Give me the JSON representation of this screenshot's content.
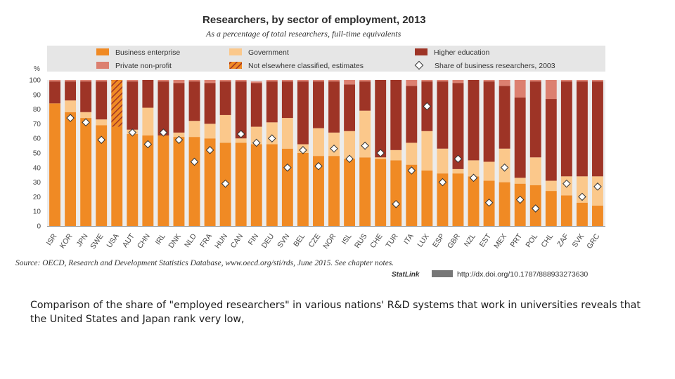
{
  "chart_data": {
    "type": "bar",
    "title": "Researchers, by sector of employment, 2013",
    "subtitle": "As a percentage of total researchers, full-time equivalents",
    "ylabel": "%",
    "ylim": [
      0,
      100
    ],
    "yticks": [
      "0",
      "10",
      "20",
      "30",
      "40",
      "50",
      "60",
      "70",
      "80",
      "90",
      "100"
    ],
    "stacked": true,
    "legend_position": "top",
    "categories": [
      "ISR",
      "KOR",
      "JPN",
      "SWE",
      "USA",
      "AUT",
      "CHN",
      "IRL",
      "DNK",
      "NLD",
      "FRA",
      "HUN",
      "CAN",
      "FIN",
      "DEU",
      "SVN",
      "BEL",
      "CZE",
      "NOR",
      "ISL",
      "RUS",
      "CHE",
      "TUR",
      "ITA",
      "LUX",
      "ESP",
      "GBR",
      "NZL",
      "EST",
      "MEX",
      "PRT",
      "POL",
      "CHL",
      "ZAF",
      "SVK",
      "GRC"
    ],
    "series": [
      {
        "name": "Business enterprise",
        "color": "#f08a24",
        "values": [
          84,
          78,
          74,
          69,
          68,
          63,
          62,
          62,
          61,
          61,
          60,
          57,
          57,
          56,
          56,
          53,
          50,
          48,
          48,
          46,
          47,
          46,
          45,
          42,
          38,
          36,
          36,
          34,
          31,
          30,
          29,
          28,
          24,
          21,
          16,
          14
        ]
      },
      {
        "name": "Government",
        "color": "#fbc88b",
        "values": [
          0,
          8,
          4,
          4,
          0,
          3,
          19,
          0,
          3,
          11,
          10,
          19,
          3,
          12,
          15,
          21,
          6,
          19,
          16,
          19,
          32,
          1,
          7,
          15,
          27,
          17,
          3,
          11,
          13,
          23,
          4,
          19,
          7,
          13,
          18,
          20
        ]
      },
      {
        "name": "Higher education",
        "color": "#9e3426",
        "values": [
          15,
          13,
          21,
          26,
          0,
          33,
          19,
          37,
          34,
          27,
          28,
          23,
          39,
          30,
          28,
          25,
          43,
          32,
          35,
          32,
          20,
          53,
          48,
          39,
          34,
          46,
          59,
          55,
          55,
          43,
          55,
          52,
          56,
          65,
          65,
          65
        ]
      },
      {
        "name": "Private non-profit",
        "color": "#dc8070",
        "values": [
          1,
          1,
          1,
          1,
          0,
          1,
          0,
          1,
          2,
          1,
          2,
          1,
          1,
          1,
          1,
          1,
          1,
          1,
          1,
          3,
          1,
          0,
          0,
          4,
          1,
          1,
          2,
          0,
          1,
          4,
          12,
          1,
          13,
          1,
          1,
          1
        ]
      },
      {
        "name": "Not elsewhere classified, estimates",
        "color": "#f08a24",
        "hatched": true,
        "values": [
          0,
          0,
          0,
          0,
          32,
          0,
          0,
          0,
          0,
          0,
          0,
          0,
          0,
          0,
          0,
          0,
          0,
          0,
          0,
          0,
          0,
          0,
          0,
          0,
          0,
          0,
          0,
          0,
          0,
          0,
          0,
          0,
          0,
          0,
          0,
          0
        ]
      }
    ],
    "markers": {
      "name": "Share of business researchers, 2003",
      "values": [
        null,
        74,
        71,
        59,
        null,
        64,
        56,
        64,
        59,
        44,
        52,
        29,
        63,
        57,
        60,
        40,
        52,
        41,
        53,
        46,
        55,
        50,
        15,
        38,
        82,
        30,
        46,
        33,
        16,
        40,
        18,
        12,
        null,
        29,
        20,
        27
      ]
    },
    "source": "Source: OECD, Research and Development Statistics Database, www.oecd.org/sti/rds, June 2015. See chapter notes.",
    "statlink_label": "StatLink",
    "statlink_url": "http://dx.doi.org/10.1787/888933273630"
  },
  "caption": "Comparison of the share of \"employed researchers\" in various nations' R&D systems that work in universities reveals that the United States and Japan rank very low,"
}
